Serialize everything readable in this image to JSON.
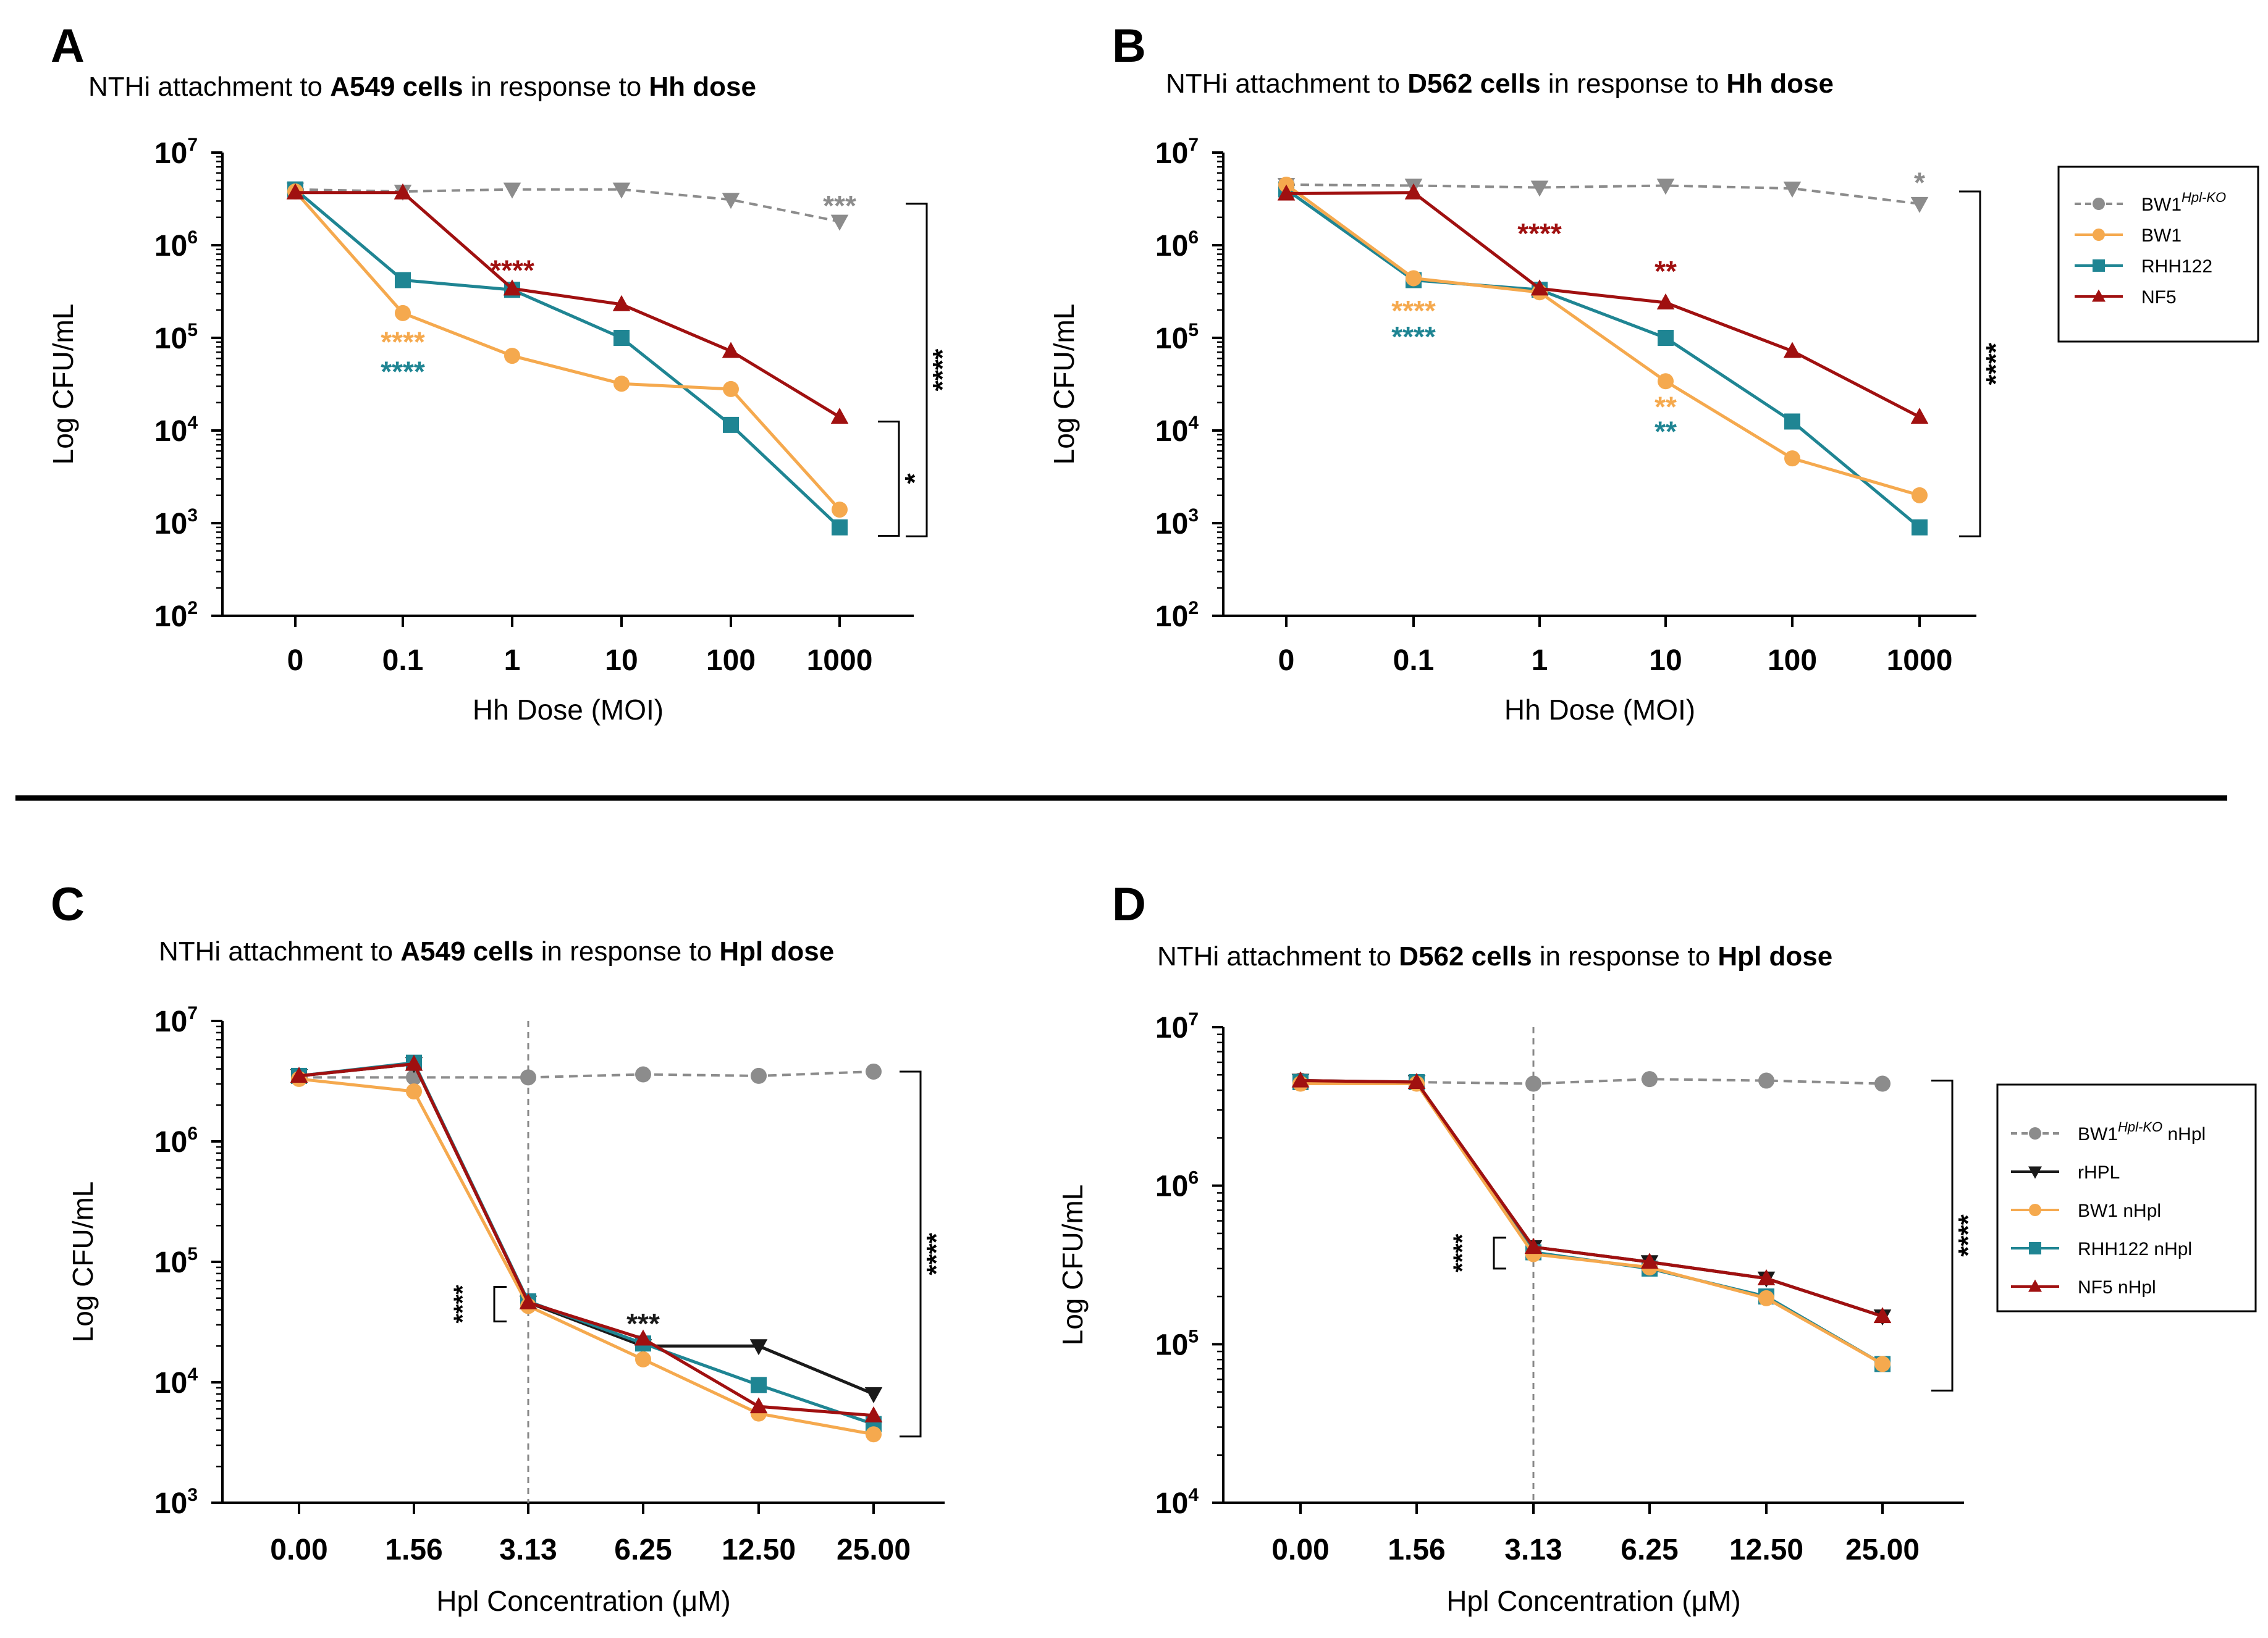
{
  "colors": {
    "ko": "#8c8c8c",
    "rhpl": "#1a1a1a",
    "bw1": "#f5a94e",
    "rhh122": "#1f8593",
    "nf5": "#a01010"
  },
  "legend_top": [
    {
      "key": "ko",
      "marker": "circle",
      "dashed": true,
      "label": "BW1",
      "sup": "Hpl-KO",
      "after": ""
    },
    {
      "key": "bw1",
      "marker": "circle",
      "dashed": false,
      "label": "BW1",
      "sup": "",
      "after": ""
    },
    {
      "key": "rhh122",
      "marker": "square",
      "dashed": false,
      "label": "RHH122",
      "sup": "",
      "after": ""
    },
    {
      "key": "nf5",
      "marker": "triangle",
      "dashed": false,
      "label": "NF5",
      "sup": "",
      "after": ""
    }
  ],
  "legend_bottom": [
    {
      "key": "ko",
      "marker": "circle",
      "dashed": true,
      "label": "BW1",
      "sup": "Hpl-KO",
      "after": " nHpl"
    },
    {
      "key": "rhpl",
      "marker": "triangle-down",
      "dashed": false,
      "label": "rHPL",
      "sup": "",
      "after": ""
    },
    {
      "key": "bw1",
      "marker": "circle",
      "dashed": false,
      "label": "BW1 nHpl",
      "sup": "",
      "after": ""
    },
    {
      "key": "rhh122",
      "marker": "square",
      "dashed": false,
      "label": "RHH122 nHpl",
      "sup": "",
      "after": ""
    },
    {
      "key": "nf5",
      "marker": "triangle",
      "dashed": false,
      "label": "NF5 nHpl",
      "sup": "",
      "after": ""
    }
  ],
  "chart_data": [
    {
      "id": "A",
      "type": "line",
      "panel": "A",
      "title": {
        "pre": "NTHi attachment to ",
        "bold1": "A549 cells",
        "mid": " in response to ",
        "bold2": "Hh dose"
      },
      "xlabel": "Hh Dose (MOI)",
      "ylabel": "Log CFU/mL",
      "yscale": "log",
      "ylim": [
        100,
        10000000
      ],
      "ytick_exponents": [
        "2",
        "3",
        "4",
        "5",
        "6",
        "7"
      ],
      "categories": [
        "0",
        "0.1",
        "1",
        "10",
        "100",
        "1000"
      ],
      "series": [
        {
          "key": "ko",
          "name": "BW1 Hpl-KO",
          "marker": "triangle-down",
          "dashed": true,
          "values": [
            4000000,
            3800000,
            4000000,
            4000000,
            3100000,
            1800000
          ]
        },
        {
          "key": "nf5",
          "name": "NF5",
          "marker": "triangle",
          "dashed": false,
          "values": [
            3700000,
            3700000,
            340000,
            230000,
            72000,
            14000
          ]
        },
        {
          "key": "rhh122",
          "name": "RHH122",
          "marker": "square",
          "dashed": false,
          "values": [
            4000000,
            420000,
            330000,
            100000,
            11500,
            900
          ]
        },
        {
          "key": "bw1",
          "name": "BW1",
          "marker": "circle",
          "dashed": false,
          "values": [
            3800000,
            185000,
            64000,
            32000,
            28000,
            1400
          ]
        }
      ],
      "annotations": [
        {
          "text": "***",
          "color": "ko",
          "at": [
            5,
            2600000
          ]
        },
        {
          "text": "****",
          "color": "nf5",
          "at": [
            2,
            520000
          ]
        },
        {
          "text": "****",
          "color": "bw1",
          "at": [
            1,
            88000
          ]
        },
        {
          "text": "****",
          "color": "rhh122",
          "at": [
            1,
            42000
          ]
        }
      ],
      "brackets": [
        {
          "text": "****",
          "from": 2800000,
          "to": 720
        },
        {
          "text": "*",
          "from": 12500,
          "to": 730
        }
      ]
    },
    {
      "id": "B",
      "type": "line",
      "panel": "B",
      "title": {
        "pre": "NTHi attachment to ",
        "bold1": "D562 cells",
        "mid": " in response to ",
        "bold2": "Hh dose"
      },
      "xlabel": "Hh Dose (MOI)",
      "ylabel": "Log CFU/mL",
      "yscale": "log",
      "ylim": [
        100,
        10000000
      ],
      "ytick_exponents": [
        "2",
        "3",
        "4",
        "5",
        "6",
        "7"
      ],
      "categories": [
        "0",
        "0.1",
        "1",
        "10",
        "100",
        "1000"
      ],
      "series": [
        {
          "key": "ko",
          "name": "BW1 Hpl-KO",
          "marker": "triangle-down",
          "dashed": true,
          "values": [
            4500000,
            4400000,
            4200000,
            4400000,
            4100000,
            2800000
          ]
        },
        {
          "key": "nf5",
          "name": "NF5",
          "marker": "triangle",
          "dashed": false,
          "values": [
            3600000,
            3700000,
            340000,
            240000,
            72000,
            14000
          ]
        },
        {
          "key": "rhh122",
          "name": "RHH122",
          "marker": "square",
          "dashed": false,
          "values": [
            4000000,
            420000,
            330000,
            100000,
            12500,
            900
          ]
        },
        {
          "key": "bw1",
          "name": "BW1",
          "marker": "circle",
          "dashed": false,
          "values": [
            4500000,
            440000,
            310000,
            34000,
            5000,
            2000
          ]
        }
      ],
      "annotations": [
        {
          "text": "*",
          "color": "ko",
          "at": [
            5,
            4600000
          ]
        },
        {
          "text": "****",
          "color": "nf5",
          "at": [
            2,
            1300000
          ]
        },
        {
          "text": "**",
          "color": "nf5",
          "at": [
            3,
            510000
          ]
        },
        {
          "text": "****",
          "color": "bw1",
          "at": [
            1,
            190000
          ]
        },
        {
          "text": "****",
          "color": "rhh122",
          "at": [
            1,
            100000
          ]
        },
        {
          "text": "**",
          "color": "bw1",
          "at": [
            3,
            17500
          ]
        },
        {
          "text": "**",
          "color": "rhh122",
          "at": [
            3,
            9500
          ]
        }
      ],
      "brackets": [
        {
          "text": "****",
          "from": 3800000,
          "to": 720
        }
      ]
    },
    {
      "id": "C",
      "type": "line",
      "panel": "C",
      "title": {
        "pre": "NTHi attachment to ",
        "bold1": "A549 cells",
        "mid": " in response to ",
        "bold2": "Hpl dose"
      },
      "xlabel": "Hpl Concentration (μM)",
      "ylabel": "Log CFU/mL",
      "yscale": "log",
      "ylim": [
        1000,
        10000000
      ],
      "ytick_exponents": [
        "3",
        "4",
        "5",
        "6",
        "7"
      ],
      "categories": [
        "0.00",
        "1.56",
        "3.13",
        "6.25",
        "12.50",
        "25.00"
      ],
      "vline_at_index": 2,
      "series": [
        {
          "key": "ko",
          "name": "BW1 Hpl-KO nHpl",
          "marker": "circle",
          "dashed": true,
          "values": [
            3400000,
            3400000,
            3400000,
            3600000,
            3500000,
            3800000
          ]
        },
        {
          "key": "rhpl",
          "name": "rHPL",
          "marker": "triangle-down",
          "dashed": false,
          "values": [
            3500000,
            4400000,
            46000,
            20000,
            20000,
            8000
          ]
        },
        {
          "key": "nf5",
          "name": "NF5 nHpl",
          "marker": "triangle",
          "dashed": false,
          "values": [
            3500000,
            4400000,
            46000,
            23000,
            6300,
            5300
          ]
        },
        {
          "key": "rhh122",
          "name": "RHH122 nHpl",
          "marker": "square",
          "dashed": false,
          "values": [
            3500000,
            4500000,
            47000,
            21000,
            9500,
            4500
          ]
        },
        {
          "key": "bw1",
          "name": "BW1 nHpl",
          "marker": "circle",
          "dashed": false,
          "values": [
            3300000,
            2600000,
            43000,
            15500,
            5500,
            3700
          ]
        }
      ],
      "annotations": [
        {
          "text": "***",
          "color": "rhpl",
          "at": [
            3,
            30000
          ]
        }
      ],
      "left_brackets": [
        {
          "text": "****",
          "from": 62000,
          "to": 32000
        }
      ],
      "brackets": [
        {
          "text": "****",
          "from": 3800000,
          "to": 3550
        }
      ]
    },
    {
      "id": "D",
      "type": "line",
      "panel": "D",
      "title": {
        "pre": "NTHi attachment to ",
        "bold1": "D562 cells",
        "mid": " in response to ",
        "bold2": "Hpl dose"
      },
      "xlabel": "Hpl Concentration (μM)",
      "ylabel": "Log CFU/mL",
      "yscale": "log",
      "ylim": [
        10000,
        10000000
      ],
      "ytick_exponents": [
        "4",
        "5",
        "6",
        "7"
      ],
      "categories": [
        "0.00",
        "1.56",
        "3.13",
        "6.25",
        "12.50",
        "25.00"
      ],
      "vline_at_index": 2,
      "series": [
        {
          "key": "ko",
          "name": "BW1 Hpl-KO nHpl",
          "marker": "circle",
          "dashed": true,
          "values": [
            4600000,
            4500000,
            4400000,
            4700000,
            4600000,
            4400000
          ]
        },
        {
          "key": "rhpl",
          "name": "rHPL",
          "marker": "triangle-down",
          "dashed": false,
          "values": [
            4600000,
            4500000,
            410000,
            330000,
            260000,
            150000
          ]
        },
        {
          "key": "nf5",
          "name": "NF5 nHpl",
          "marker": "triangle",
          "dashed": false,
          "values": [
            4600000,
            4500000,
            410000,
            330000,
            260000,
            150000
          ]
        },
        {
          "key": "rhh122",
          "name": "RHH122 nHpl",
          "marker": "square",
          "dashed": false,
          "values": [
            4500000,
            4500000,
            380000,
            300000,
            200000,
            75000
          ]
        },
        {
          "key": "bw1",
          "name": "BW1 nHpl",
          "marker": "circle",
          "dashed": false,
          "values": [
            4400000,
            4400000,
            370000,
            305000,
            195000,
            75000
          ]
        }
      ],
      "annotations": [],
      "left_brackets": [
        {
          "text": "****",
          "from": 470000,
          "to": 300000
        }
      ],
      "brackets": [
        {
          "text": "****",
          "from": 4600000,
          "to": 51000
        }
      ]
    }
  ]
}
